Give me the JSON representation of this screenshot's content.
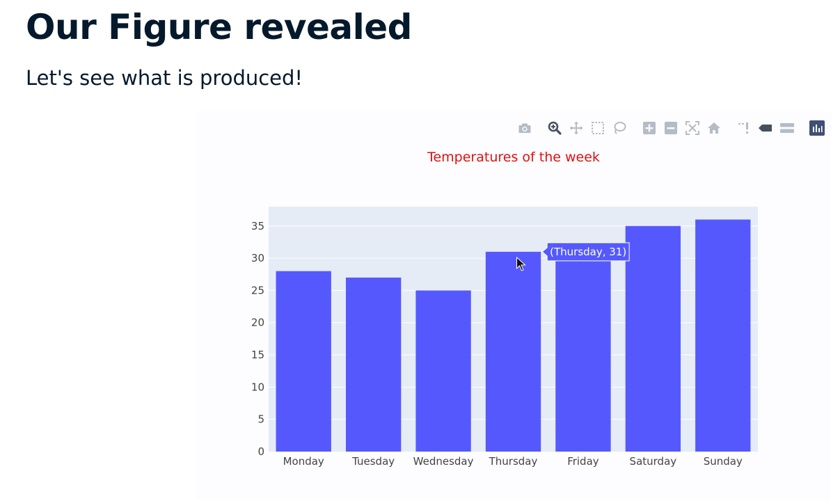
{
  "page": {
    "heading": "Our Figure revealed",
    "subtitle": "Let's see what is produced!"
  },
  "modebar": {
    "buttons": [
      {
        "name": "camera-icon",
        "active": false
      },
      {
        "name": "zoom-icon",
        "active": true
      },
      {
        "name": "pan-icon",
        "active": false
      },
      {
        "name": "box-select-icon",
        "active": false
      },
      {
        "name": "lasso-select-icon",
        "active": false
      },
      {
        "name": "zoom-in-icon",
        "active": false
      },
      {
        "name": "zoom-out-icon",
        "active": false
      },
      {
        "name": "autoscale-icon",
        "active": false
      },
      {
        "name": "reset-axes-icon",
        "active": false
      },
      {
        "name": "spike-lines-icon",
        "active": false
      },
      {
        "name": "hover-closest-icon",
        "active": false
      },
      {
        "name": "hover-compare-icon",
        "active": false
      },
      {
        "name": "plotly-logo-icon",
        "active": false
      }
    ]
  },
  "colors": {
    "bar": "#5559fd",
    "plot_bg": "#e5ecf6",
    "title": "#e30f0f",
    "tick_text": "#444444",
    "icon_gray": "#b4bcc6",
    "icon_active": "#45505d",
    "logo_bg": "#3f4f75"
  },
  "chart_data": {
    "type": "bar",
    "title": "Temperatures of the week",
    "xlabel": "",
    "ylabel": "",
    "categories": [
      "Monday",
      "Tuesday",
      "Wednesday",
      "Thursday",
      "Friday",
      "Saturday",
      "Sunday"
    ],
    "values": [
      28,
      27,
      25,
      31,
      30,
      35,
      36
    ],
    "ylim": [
      0,
      38
    ],
    "yticks": [
      0,
      5,
      10,
      15,
      20,
      25,
      30,
      35
    ],
    "grid": true,
    "hover": {
      "category": "Thursday",
      "label": "(Thursday, 31)"
    }
  }
}
